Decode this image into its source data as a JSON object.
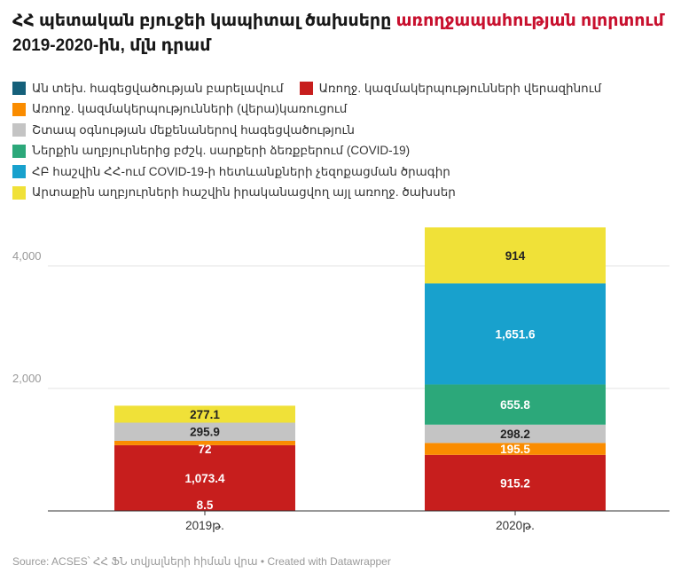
{
  "title": {
    "part1": "ՀՀ պետական բյուջեի կապիտալ ծախսերը ",
    "highlight": "առողջապահության ոլորտում",
    "part2": "2019-2020-ին, մլն դրամ"
  },
  "footer": "Source: ACSES՝ ՀՀ ՖՆ տվյալների հիման վրա • Created with Datawrapper",
  "chart_data": {
    "type": "bar",
    "stacked": true,
    "categories": [
      "2019թ.",
      "2020թ."
    ],
    "y_ticks": [
      2000,
      4000
    ],
    "y_tick_labels": [
      "2,000",
      "4,000"
    ],
    "ylim": [
      0,
      4650
    ],
    "grid": true,
    "legend_position": "top",
    "series": [
      {
        "name": "Ան տեխ. հագեցվածության բարելավում",
        "color": "#15607a",
        "values": [
          0,
          0
        ],
        "labels": [
          "",
          ""
        ]
      },
      {
        "name": "Առողջ. կազմակերպությունների վերազինում",
        "color": "#c71e1d",
        "values": [
          1073.4,
          915.2
        ],
        "labels": [
          "1,073.4",
          "915.2"
        ]
      },
      {
        "name": "Առողջ. կազմակերպությունների (վերա)կառուցում",
        "color": "#fa8c00",
        "values": [
          72,
          195.5
        ],
        "labels": [
          "72",
          "195.5"
        ]
      },
      {
        "name": "Շտապ օգնության մեքենաներով հագեցվածություն",
        "color": "#c4c4c4",
        "values": [
          295.9,
          298.2
        ],
        "labels": [
          "295.9",
          "298.2"
        ]
      },
      {
        "name": "Ներքին աղբյուրներից բժշկ. սարքերի ձեռքբերում (COVID-19)",
        "color": "#2ca87a",
        "values": [
          0,
          655.8
        ],
        "labels": [
          "",
          "655.8"
        ]
      },
      {
        "name": "ՀԲ հաշվին ՀՀ-ում COVID-19-ի հետևանքների չեզոքացման ծրագիր",
        "color": "#18a1cd",
        "values": [
          0,
          1651.6
        ],
        "labels": [
          "",
          "1,651.6"
        ]
      },
      {
        "name": "Արտաքին աղբյուրների հաշվին իրականացվող այլ առողջ. ծախսեր",
        "color": "#f0e138",
        "values": [
          277.1,
          914
        ],
        "labels": [
          "277.1",
          "914"
        ]
      }
    ],
    "extra_labels": [
      {
        "category": "2019թ.",
        "text": "8.5"
      }
    ]
  }
}
